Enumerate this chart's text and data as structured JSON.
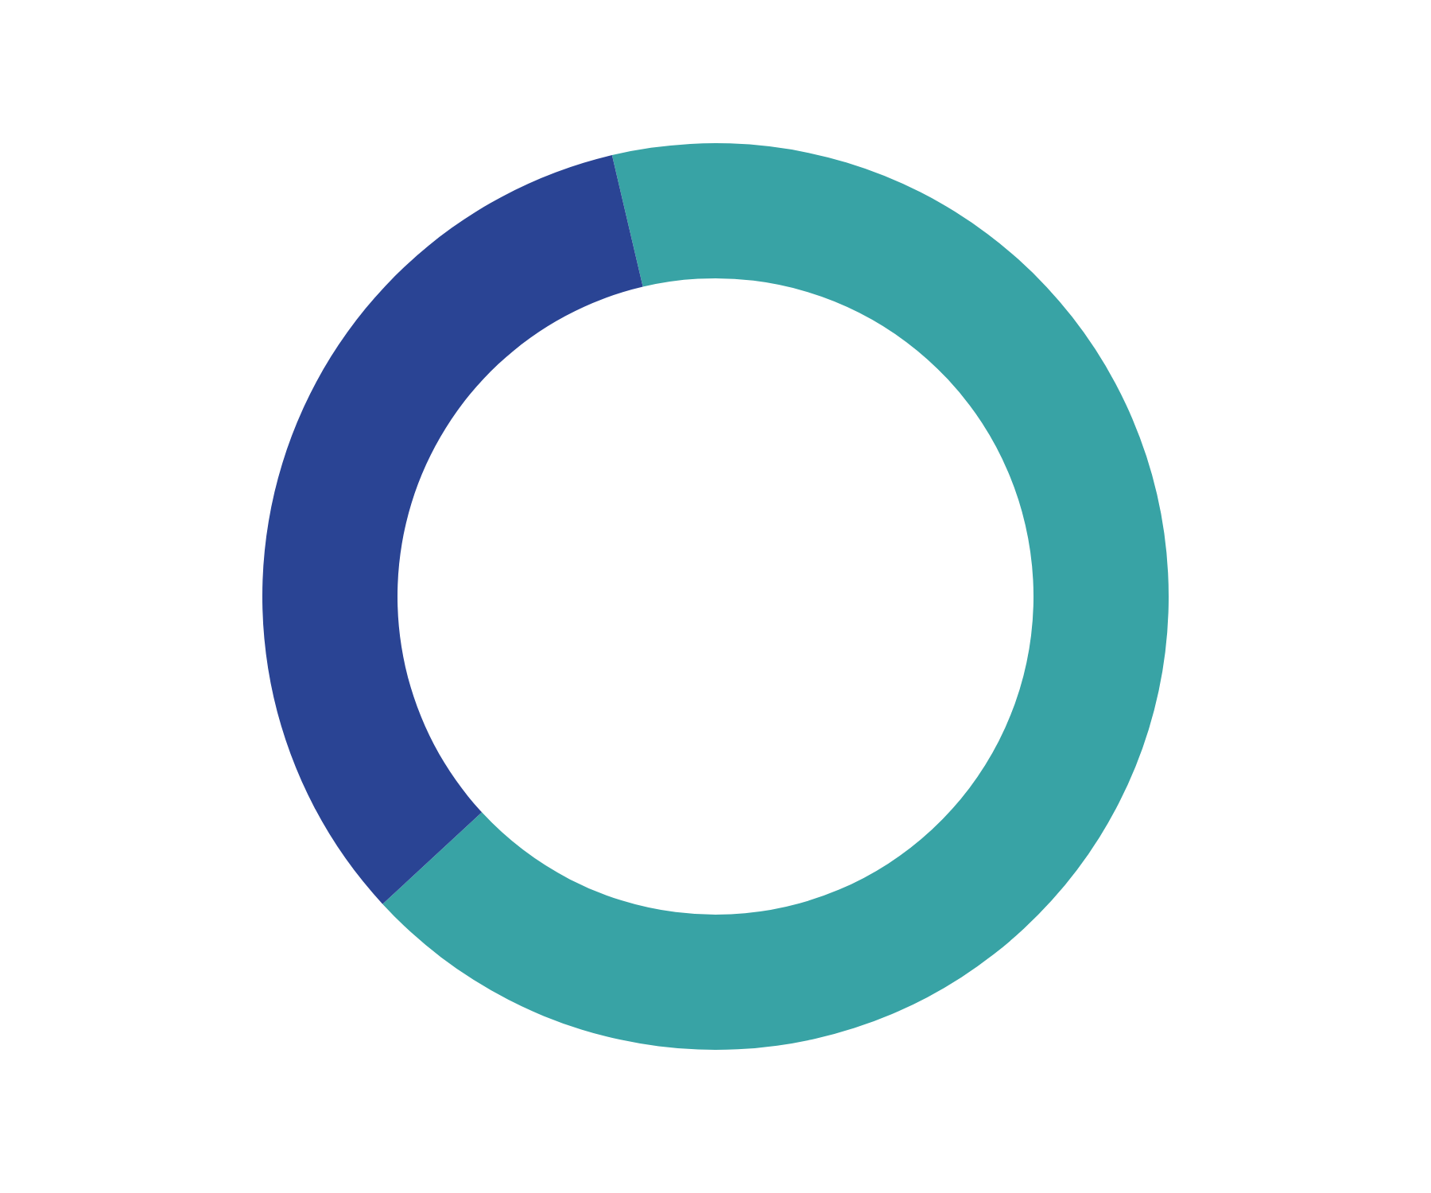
{
  "chart_data": {
    "type": "donut",
    "categories": [
      null,
      null
    ],
    "values": [
      66.8,
      33.2
    ],
    "colors": [
      "#38a3a5",
      "#2a4494"
    ]
  }
}
